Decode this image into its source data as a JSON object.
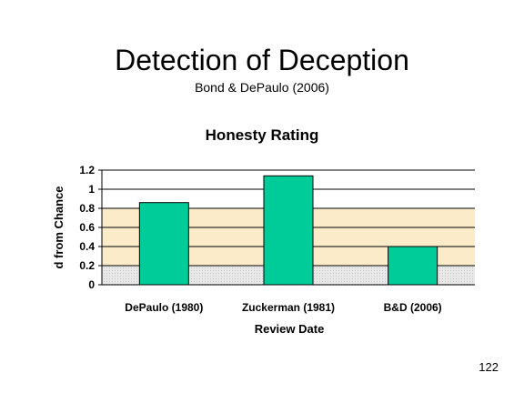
{
  "slide": {
    "title": "Detection of Deception",
    "subtitle": "Bond & DePaulo (2006)",
    "page_number": "122"
  },
  "colors": {
    "bar": "#00CC99",
    "gridline": "#000000",
    "band_upper": "#FBEBC9",
    "band_lower": "#E2E2E2"
  },
  "chart_data": {
    "type": "bar",
    "title": "Honesty Rating",
    "xlabel": "Review Date",
    "ylabel": "d from Chance",
    "categories": [
      "DePaulo (1980)",
      "Zuckerman (1981)",
      "B&D (2006)"
    ],
    "values": [
      0.86,
      1.14,
      0.4
    ],
    "ylim": [
      0,
      1.2
    ],
    "yticks": [
      "0",
      "0.2",
      "0.4",
      "0.6",
      "0.8",
      "1",
      "1.2"
    ],
    "grid": true,
    "legend": "none",
    "shaded_bands": [
      {
        "from": 0.2,
        "to": 0.8,
        "color": "band_upper"
      },
      {
        "from": 0,
        "to": 0.2,
        "color": "band_lower"
      }
    ]
  }
}
